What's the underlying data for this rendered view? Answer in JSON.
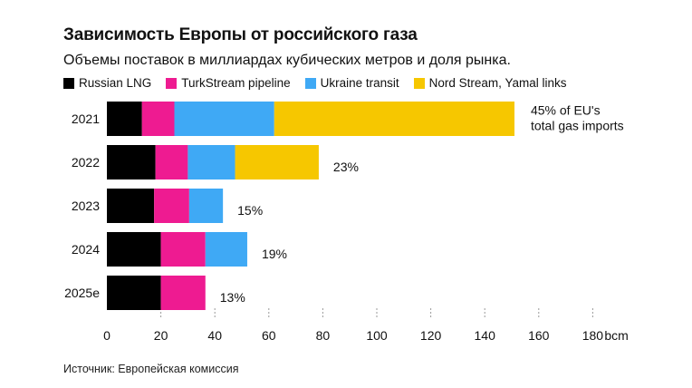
{
  "header": {
    "title": "Зависимость Европы от российского газа",
    "subtitle": "Объемы поставок в миллиардах кубических метров и доля рынка."
  },
  "footer": {
    "source": "Источник: Европейская комиссия"
  },
  "chart_data": {
    "type": "bar",
    "orientation": "horizontal",
    "stacked": true,
    "categories": [
      "2021",
      "2022",
      "2023",
      "2024",
      "2025e"
    ],
    "series": [
      {
        "name": "Russian LNG",
        "color": "#000000",
        "values": [
          13,
          18,
          17.5,
          20,
          20
        ]
      },
      {
        "name": "TurkStream pipeline",
        "color": "#ee1b91",
        "values": [
          12,
          12,
          13,
          16.5,
          16.5
        ]
      },
      {
        "name": "Ukraine transit",
        "color": "#3fa9f5",
        "values": [
          37,
          17.5,
          12.5,
          15.5,
          0
        ]
      },
      {
        "name": "Nord Stream, Yamal links",
        "color": "#f6c700",
        "values": [
          89,
          31,
          0,
          0,
          0
        ]
      }
    ],
    "annotations": [
      {
        "category": "2021",
        "lines": [
          "45% of EU's",
          "total gas imports"
        ]
      },
      {
        "category": "2022",
        "lines": [
          "23%"
        ]
      },
      {
        "category": "2023",
        "lines": [
          "15%"
        ]
      },
      {
        "category": "2024",
        "lines": [
          "19%"
        ]
      },
      {
        "category": "2025e",
        "lines": [
          "13%"
        ]
      }
    ],
    "xlim": [
      0,
      180
    ],
    "xticks": [
      0,
      20,
      40,
      60,
      80,
      100,
      120,
      140,
      160,
      180
    ],
    "xtick_labels": [
      "0",
      "20",
      "40",
      "60",
      "80",
      "100",
      "120",
      "140",
      "160",
      "180"
    ],
    "x_unit": "bcm",
    "grid": "vertical"
  }
}
